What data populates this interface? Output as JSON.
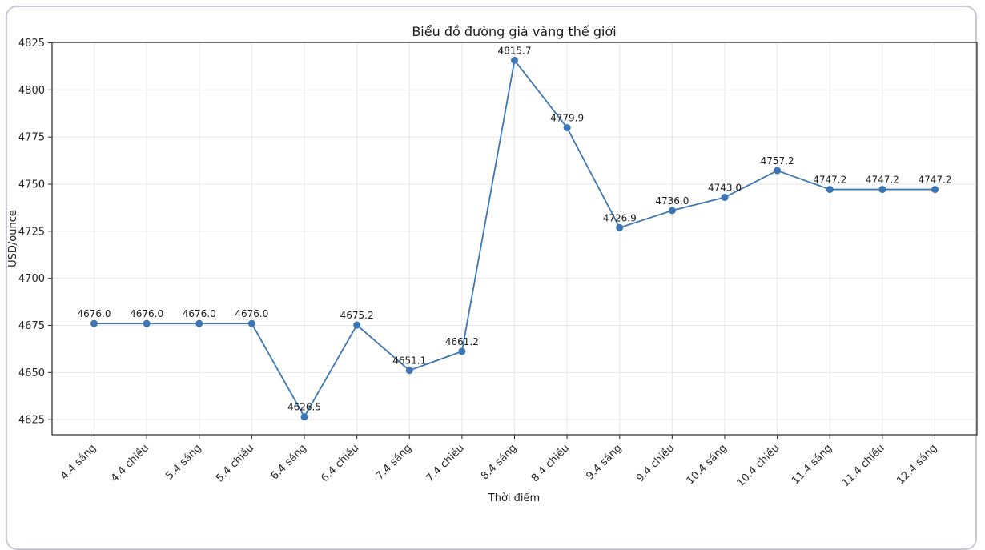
{
  "window": {
    "background": "#ffffff",
    "card_border_color": "#c7cbd1"
  },
  "chart_data": {
    "type": "line",
    "title": "Biểu đồ đường giá vàng thế giới",
    "xlabel": "Thời điểm",
    "ylabel": "USD/ounce",
    "categories": [
      "4.4 sáng",
      "4.4 chiều",
      "5.4 sáng",
      "5.4 chiều",
      "6.4 sáng",
      "6.4 chiều",
      "7.4 sáng",
      "7.4 chiều",
      "8.4 sáng",
      "8.4 chiều",
      "9.4 sáng",
      "9.4 chiều",
      "10.4 sáng",
      "10.4 chiều",
      "11.4 sáng",
      "11.4 chiều",
      "12.4 sáng"
    ],
    "values": [
      4676.0,
      4676.0,
      4676.0,
      4676.0,
      4626.5,
      4675.2,
      4651.1,
      4661.2,
      4815.7,
      4779.9,
      4726.9,
      4736.0,
      4743.0,
      4757.2,
      4747.2,
      4747.2,
      4747.2
    ],
    "point_labels": [
      "4676.0",
      "4676.0",
      "4676.0",
      "4676.0",
      "4626.5",
      "4675.2",
      "4651.1",
      "4661.2",
      "4815.7",
      "4779.9",
      "4726.9",
      "4736.0",
      "4743.0",
      "4757.2",
      "4747.2",
      "4747.2",
      "4747.2"
    ],
    "y_ticks": [
      4625,
      4650,
      4675,
      4700,
      4725,
      4750,
      4775,
      4800,
      4825
    ],
    "ylim": [
      4617.0,
      4825.2
    ],
    "grid": true,
    "legend_position": "none",
    "line_color": "#3d76b4",
    "marker": "circle",
    "grid_color": "#e7e7e7",
    "axis_color": "#262626",
    "text_color": "#1a1a1a"
  }
}
